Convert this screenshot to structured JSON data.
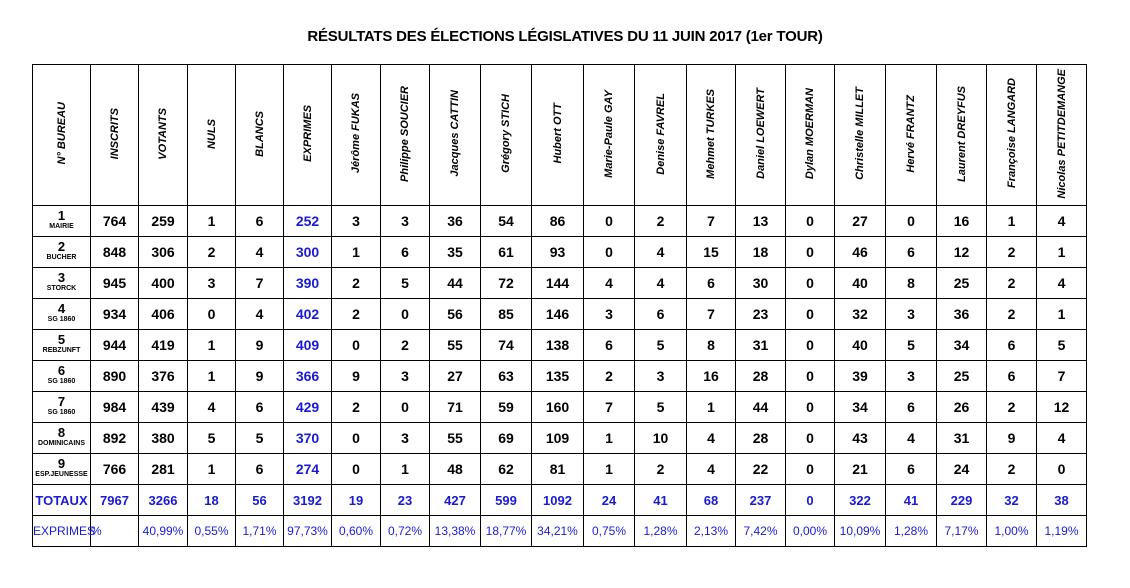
{
  "title": "RÉSULTATS DES ÉLECTIONS LÉGISLATIVES DU 11 JUIN 2017 (1er TOUR)",
  "table": {
    "headers": [
      "N° BUREAU",
      "INSCRITS",
      "VOTANTS",
      "NULS",
      "BLANCS",
      "EXPRIMES",
      "Jérôme FUKAS",
      "Philippe SOUCIER",
      "Jacques CATTIN",
      "Grégory STICH",
      "Hubert OTT",
      "Marie-Paule GAY",
      "Denise FAVREL",
      "Mehmet TURKES",
      "Daniel LOEWERT",
      "Dylan MOERMAN",
      "Christelle MILLET",
      "Hervé FRANTZ",
      "Laurent DREYFUS",
      "Françoise LANGARD",
      "Nicolas PETITDEMANGE"
    ],
    "rows": [
      {
        "bureau": "1",
        "place": "MAIRIE",
        "values": [
          764,
          259,
          1,
          6,
          252,
          3,
          3,
          36,
          54,
          86,
          0,
          2,
          7,
          13,
          0,
          27,
          0,
          16,
          1,
          4
        ]
      },
      {
        "bureau": "2",
        "place": "BUCHER",
        "values": [
          848,
          306,
          2,
          4,
          300,
          1,
          6,
          35,
          61,
          93,
          0,
          4,
          15,
          18,
          0,
          46,
          6,
          12,
          2,
          1
        ]
      },
      {
        "bureau": "3",
        "place": "STORCK",
        "values": [
          945,
          400,
          3,
          7,
          390,
          2,
          5,
          44,
          72,
          144,
          4,
          4,
          6,
          30,
          0,
          40,
          8,
          25,
          2,
          4
        ]
      },
      {
        "bureau": "4",
        "place": "SG 1860",
        "values": [
          934,
          406,
          0,
          4,
          402,
          2,
          0,
          56,
          85,
          146,
          3,
          6,
          7,
          23,
          0,
          32,
          3,
          36,
          2,
          1
        ]
      },
      {
        "bureau": "5",
        "place": "REBZUNFT",
        "values": [
          944,
          419,
          1,
          9,
          409,
          0,
          2,
          55,
          74,
          138,
          6,
          5,
          8,
          31,
          0,
          40,
          5,
          34,
          6,
          5
        ]
      },
      {
        "bureau": "6",
        "place": "SG 1860",
        "values": [
          890,
          376,
          1,
          9,
          366,
          9,
          3,
          27,
          63,
          135,
          2,
          3,
          16,
          28,
          0,
          39,
          3,
          25,
          6,
          7
        ]
      },
      {
        "bureau": "7",
        "place": "SG 1860",
        "values": [
          984,
          439,
          4,
          6,
          429,
          2,
          0,
          71,
          59,
          160,
          7,
          5,
          1,
          44,
          0,
          34,
          6,
          26,
          2,
          12
        ]
      },
      {
        "bureau": "8",
        "place": "DOMINICAINS",
        "values": [
          892,
          380,
          5,
          5,
          370,
          0,
          3,
          55,
          69,
          109,
          1,
          10,
          4,
          28,
          0,
          43,
          4,
          31,
          9,
          4
        ]
      },
      {
        "bureau": "9",
        "place": "ESP.JEUNESSE",
        "values": [
          766,
          281,
          1,
          6,
          274,
          0,
          1,
          48,
          62,
          81,
          1,
          2,
          4,
          22,
          0,
          21,
          6,
          24,
          2,
          0
        ]
      }
    ],
    "totals": {
      "label": "TOTAUX",
      "values": [
        7967,
        3266,
        18,
        56,
        3192,
        19,
        23,
        427,
        599,
        1092,
        24,
        41,
        68,
        237,
        0,
        322,
        41,
        229,
        32,
        38
      ]
    },
    "percent": {
      "label": "EXPRIMES",
      "unit": "%",
      "values": [
        "40,99%",
        "0,55%",
        "1,71%",
        "97,73%",
        "0,60%",
        "0,72%",
        "13,38%",
        "18,77%",
        "34,21%",
        "0,75%",
        "1,28%",
        "2,13%",
        "7,42%",
        "0,00%",
        "10,09%",
        "1,28%",
        "7,17%",
        "1,00%",
        "1,19%"
      ]
    }
  }
}
